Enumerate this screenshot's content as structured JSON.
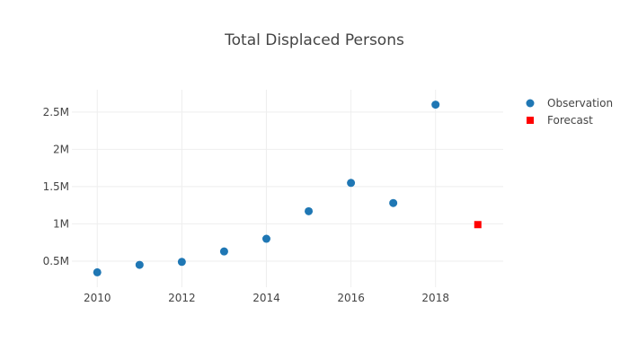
{
  "chart_data": {
    "type": "scatter",
    "title": "Total Displaced Persons",
    "xlabel": "",
    "ylabel": "",
    "xlim": [
      2009.4,
      2019.6
    ],
    "ylim": [
      150000,
      2800000
    ],
    "x_ticks": [
      {
        "value": 2010,
        "label": "2010"
      },
      {
        "value": 2012,
        "label": "2012"
      },
      {
        "value": 2014,
        "label": "2014"
      },
      {
        "value": 2016,
        "label": "2016"
      },
      {
        "value": 2018,
        "label": "2018"
      }
    ],
    "y_ticks": [
      {
        "value": 500000,
        "label": "0.5M"
      },
      {
        "value": 1000000,
        "label": "1M"
      },
      {
        "value": 1500000,
        "label": "1.5M"
      },
      {
        "value": 2000000,
        "label": "2M"
      },
      {
        "value": 2500000,
        "label": "2.5M"
      }
    ],
    "grid": true,
    "legend_position": "top-right",
    "series": [
      {
        "name": "Observation",
        "marker": "circle",
        "color": "#1f77b4",
        "x": [
          2010,
          2011,
          2012,
          2013,
          2014,
          2015,
          2016,
          2017,
          2018
        ],
        "y": [
          350000,
          450000,
          490000,
          630000,
          800000,
          1170000,
          1550000,
          1280000,
          2600000
        ]
      },
      {
        "name": "Forecast",
        "marker": "square",
        "color": "#ff0000",
        "x": [
          2019
        ],
        "y": [
          990000
        ]
      }
    ]
  }
}
